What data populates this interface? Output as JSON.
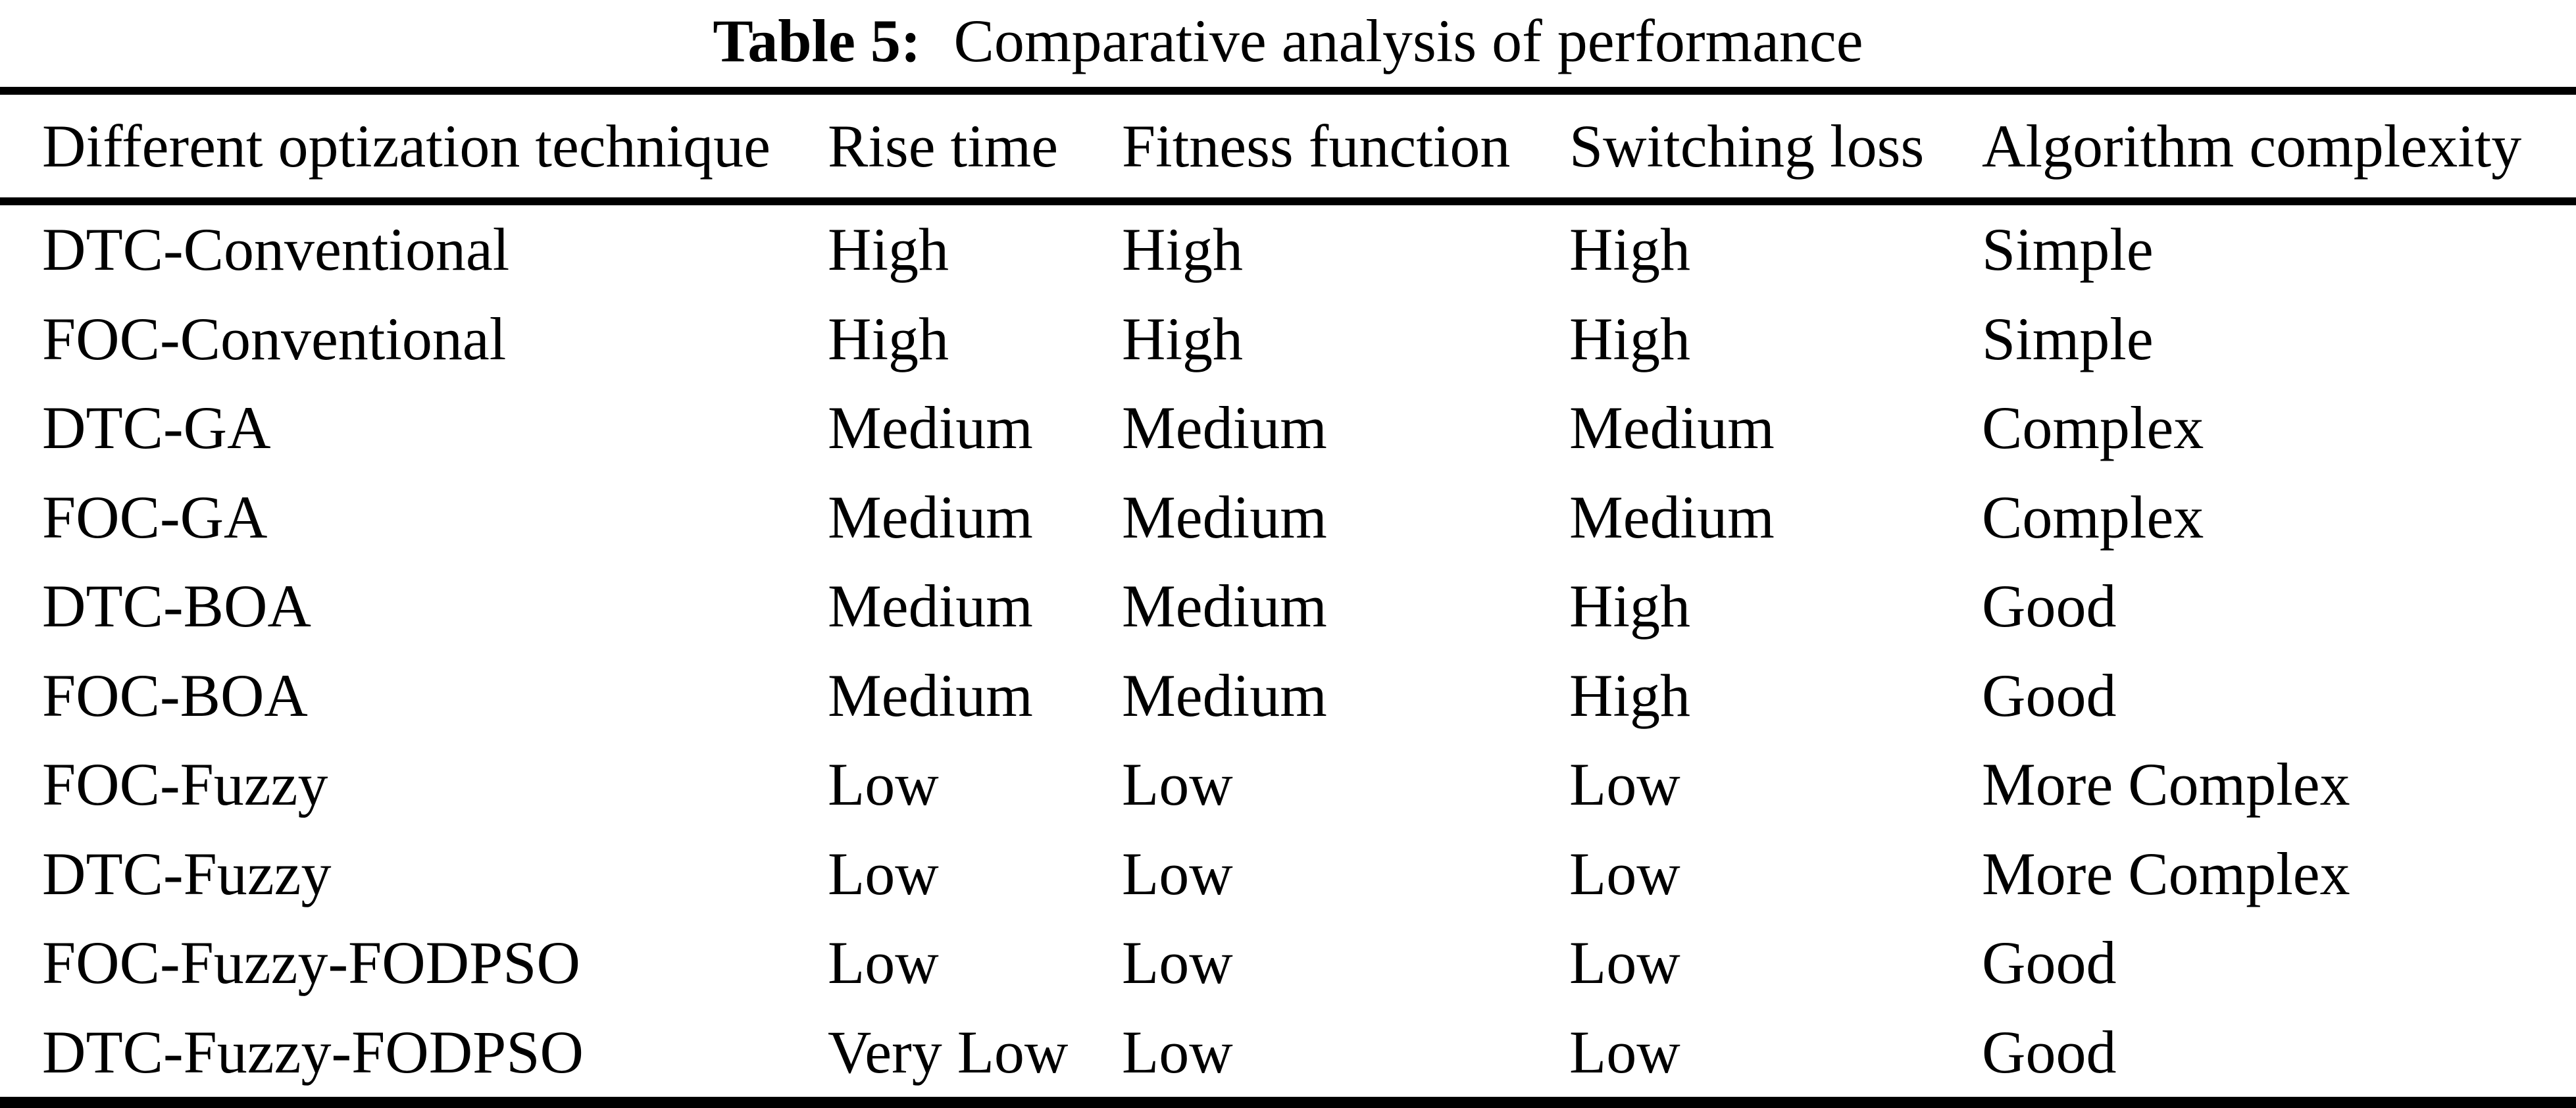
{
  "colors": {
    "background": "#ffffff",
    "text": "#000000",
    "rule": "#000000"
  },
  "caption": {
    "label": "Table 5:",
    "text": "Comparative analysis of performance"
  },
  "table": {
    "columns": [
      "Different optization technique",
      "Rise time",
      "Fitness function",
      "Switching loss",
      "Algorithm complexity"
    ],
    "rows": [
      {
        "technique": "DTC-Conventional",
        "rise_time": "High",
        "fitness_function": "High",
        "switching_loss": "High",
        "algorithm_complexity": "Simple"
      },
      {
        "technique": "FOC-Conventional",
        "rise_time": "High",
        "fitness_function": "High",
        "switching_loss": "High",
        "algorithm_complexity": "Simple"
      },
      {
        "technique": "DTC-GA",
        "rise_time": "Medium",
        "fitness_function": "Medium",
        "switching_loss": "Medium",
        "algorithm_complexity": "Complex"
      },
      {
        "technique": "FOC-GA",
        "rise_time": "Medium",
        "fitness_function": "Medium",
        "switching_loss": "Medium",
        "algorithm_complexity": "Complex"
      },
      {
        "technique": "DTC-BOA",
        "rise_time": "Medium",
        "fitness_function": "Medium",
        "switching_loss": "High",
        "algorithm_complexity": "Good"
      },
      {
        "technique": "FOC-BOA",
        "rise_time": "Medium",
        "fitness_function": "Medium",
        "switching_loss": "High",
        "algorithm_complexity": "Good"
      },
      {
        "technique": "FOC-Fuzzy",
        "rise_time": "Low",
        "fitness_function": "Low",
        "switching_loss": "Low",
        "algorithm_complexity": "More Complex"
      },
      {
        "technique": "DTC-Fuzzy",
        "rise_time": "Low",
        "fitness_function": "Low",
        "switching_loss": "Low",
        "algorithm_complexity": "More Complex"
      },
      {
        "technique": "FOC-Fuzzy-FODPSO",
        "rise_time": "Low",
        "fitness_function": "Low",
        "switching_loss": "Low",
        "algorithm_complexity": "Good"
      },
      {
        "technique": "DTC-Fuzzy-FODPSO",
        "rise_time": "Very Low",
        "fitness_function": "Low",
        "switching_loss": "Low",
        "algorithm_complexity": "Good"
      }
    ]
  }
}
